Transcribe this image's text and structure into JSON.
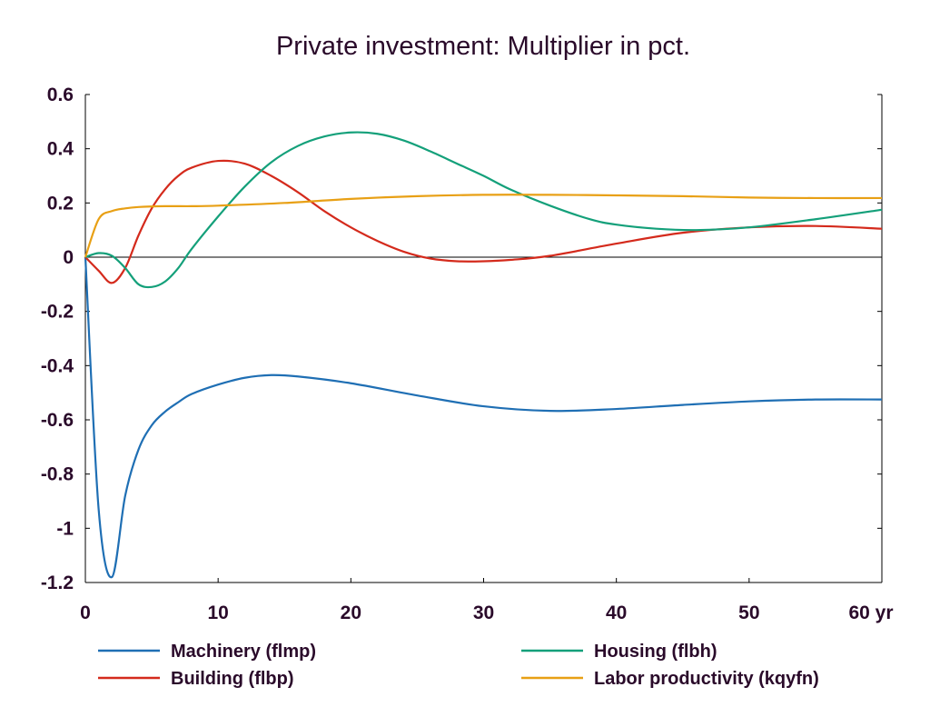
{
  "chart_data": {
    "type": "line",
    "title": "Private investment: Multiplier in pct.",
    "x_unit_label": "yr",
    "xlim": [
      0,
      60
    ],
    "ylim": [
      -1.2,
      0.6
    ],
    "x_ticks": [
      0,
      10,
      20,
      30,
      40,
      50,
      60
    ],
    "x_tick_labels": [
      "0",
      "10",
      "20",
      "30",
      "40",
      "50",
      "60 yr"
    ],
    "y_ticks": [
      0.6,
      0.4,
      0.2,
      0,
      -0.2,
      -0.4,
      -0.6,
      -0.8,
      -1,
      -1.2
    ],
    "y_tick_labels": [
      "0.6",
      "0.4",
      "0.2",
      "0",
      "-0.2",
      "-0.4",
      "-0.6",
      "-0.8",
      "-1",
      "-1.2"
    ],
    "grid": false,
    "zero_line": true,
    "legend_position": "bottom",
    "series": [
      {
        "name": "Machinery (flmp)",
        "color": "#1f6fb4",
        "points": [
          [
            0,
            0
          ],
          [
            1,
            -0.93
          ],
          [
            2,
            -1.18
          ],
          [
            3,
            -0.88
          ],
          [
            4,
            -0.71
          ],
          [
            5,
            -0.62
          ],
          [
            6,
            -0.57
          ],
          [
            7,
            -0.535
          ],
          [
            8,
            -0.505
          ],
          [
            10,
            -0.47
          ],
          [
            12,
            -0.445
          ],
          [
            14,
            -0.435
          ],
          [
            16,
            -0.44
          ],
          [
            20,
            -0.465
          ],
          [
            25,
            -0.51
          ],
          [
            30,
            -0.55
          ],
          [
            35,
            -0.567
          ],
          [
            40,
            -0.56
          ],
          [
            45,
            -0.545
          ],
          [
            50,
            -0.532
          ],
          [
            55,
            -0.525
          ],
          [
            60,
            -0.525
          ]
        ]
      },
      {
        "name": "Building (flbp)",
        "color": "#d42a1c",
        "points": [
          [
            0,
            0
          ],
          [
            1,
            -0.05
          ],
          [
            2,
            -0.095
          ],
          [
            3,
            -0.04
          ],
          [
            4,
            0.08
          ],
          [
            5,
            0.18
          ],
          [
            6,
            0.25
          ],
          [
            7,
            0.3
          ],
          [
            8,
            0.33
          ],
          [
            10,
            0.355
          ],
          [
            12,
            0.345
          ],
          [
            14,
            0.3
          ],
          [
            16,
            0.24
          ],
          [
            18,
            0.17
          ],
          [
            20,
            0.11
          ],
          [
            22,
            0.06
          ],
          [
            24,
            0.02
          ],
          [
            26,
            -0.005
          ],
          [
            28,
            -0.015
          ],
          [
            30,
            -0.015
          ],
          [
            32,
            -0.01
          ],
          [
            35,
            0.005
          ],
          [
            40,
            0.05
          ],
          [
            45,
            0.09
          ],
          [
            50,
            0.11
          ],
          [
            55,
            0.115
          ],
          [
            60,
            0.105
          ]
        ]
      },
      {
        "name": "Housing (flbh)",
        "color": "#14a07a",
        "points": [
          [
            0,
            0
          ],
          [
            1,
            0.015
          ],
          [
            2,
            0.005
          ],
          [
            3,
            -0.04
          ],
          [
            4,
            -0.1
          ],
          [
            5,
            -0.11
          ],
          [
            6,
            -0.09
          ],
          [
            7,
            -0.04
          ],
          [
            8,
            0.03
          ],
          [
            10,
            0.15
          ],
          [
            12,
            0.26
          ],
          [
            14,
            0.35
          ],
          [
            16,
            0.41
          ],
          [
            18,
            0.445
          ],
          [
            20,
            0.46
          ],
          [
            22,
            0.455
          ],
          [
            24,
            0.43
          ],
          [
            26,
            0.39
          ],
          [
            28,
            0.345
          ],
          [
            30,
            0.3
          ],
          [
            32,
            0.25
          ],
          [
            35,
            0.19
          ],
          [
            38,
            0.14
          ],
          [
            40,
            0.12
          ],
          [
            43,
            0.105
          ],
          [
            46,
            0.1
          ],
          [
            50,
            0.11
          ],
          [
            55,
            0.14
          ],
          [
            60,
            0.175
          ]
        ]
      },
      {
        "name": "Labor productivity (kqyfn)",
        "color": "#e8a015",
        "points": [
          [
            0,
            0
          ],
          [
            1,
            0.14
          ],
          [
            2,
            0.17
          ],
          [
            3,
            0.18
          ],
          [
            4,
            0.185
          ],
          [
            6,
            0.188
          ],
          [
            8,
            0.188
          ],
          [
            10,
            0.19
          ],
          [
            15,
            0.2
          ],
          [
            20,
            0.215
          ],
          [
            25,
            0.225
          ],
          [
            30,
            0.23
          ],
          [
            35,
            0.23
          ],
          [
            40,
            0.228
          ],
          [
            45,
            0.225
          ],
          [
            50,
            0.22
          ],
          [
            55,
            0.218
          ],
          [
            60,
            0.218
          ]
        ]
      }
    ]
  }
}
